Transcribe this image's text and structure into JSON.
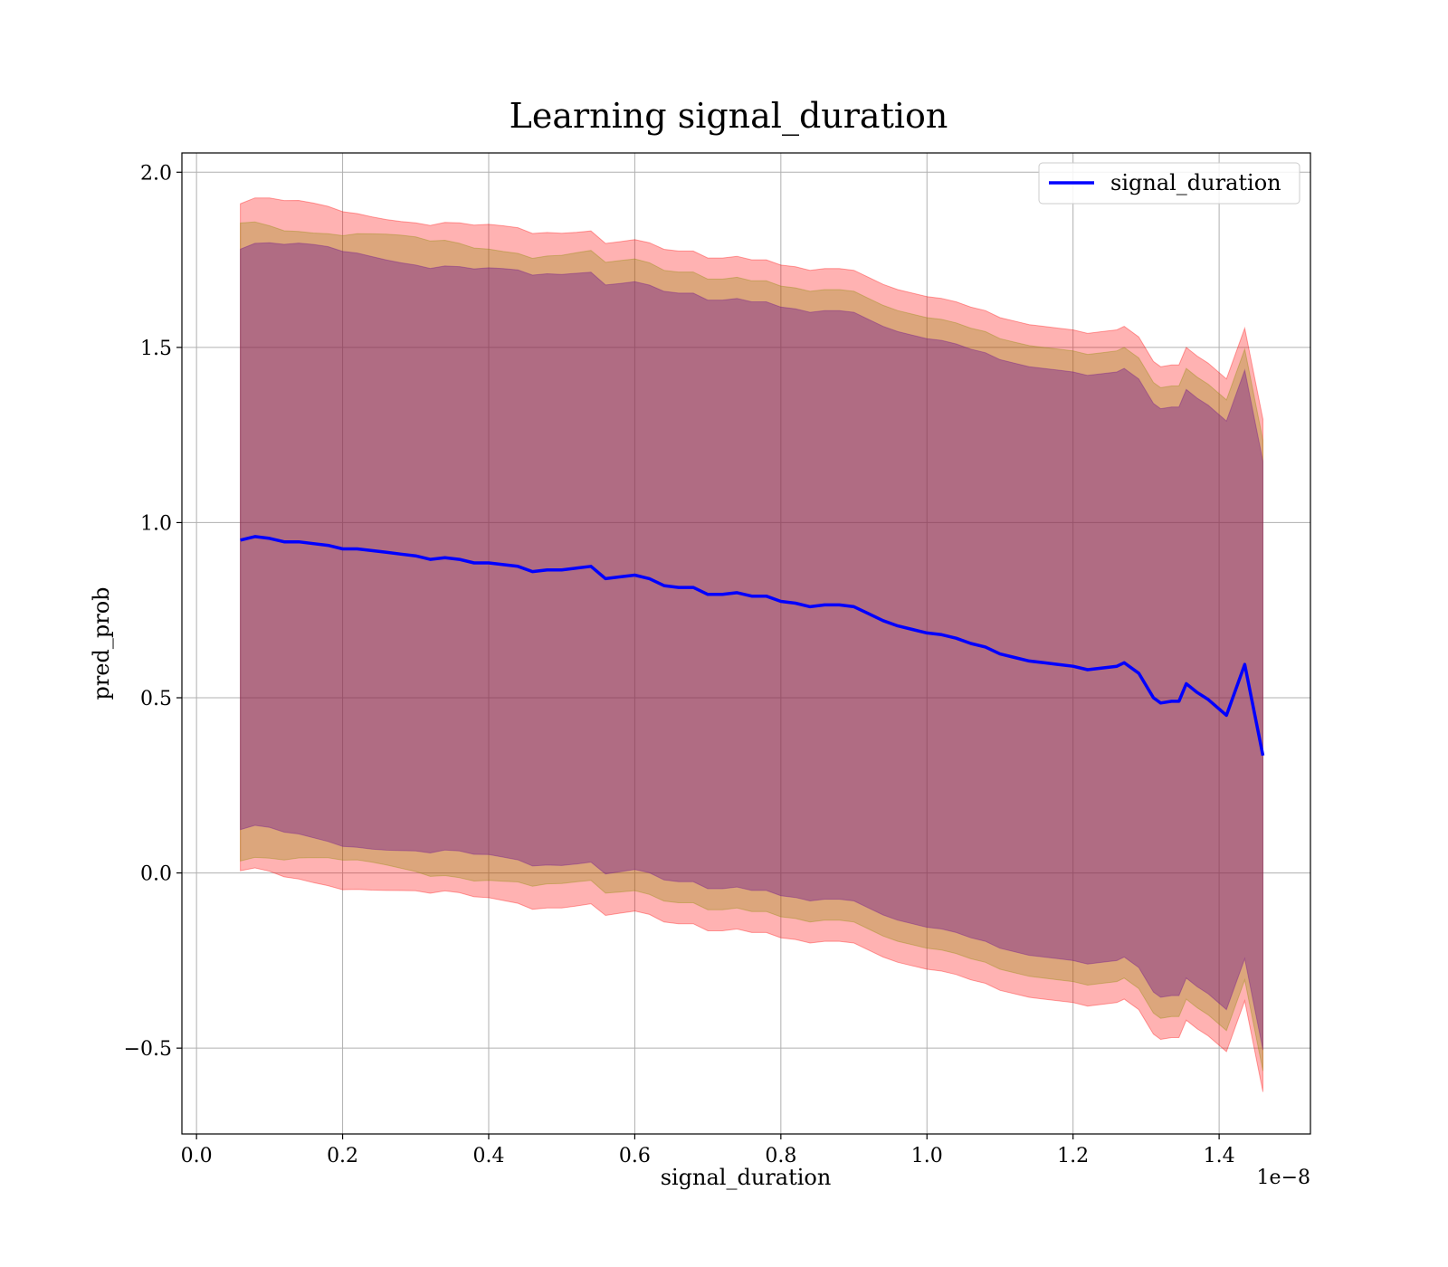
{
  "chart_data": {
    "type": "line",
    "title": "Learning signal_duration",
    "xlabel": "signal_duration",
    "ylabel": "pred_prob",
    "x_offset_label": "1e−8",
    "xlim": [
      -0.02,
      1.525
    ],
    "ylim": [
      -0.745,
      2.055
    ],
    "xticks": [
      0.0,
      0.2,
      0.4,
      0.6,
      0.8,
      1.0,
      1.2,
      1.4
    ],
    "xtick_labels": [
      "0.0",
      "0.2",
      "0.4",
      "0.6",
      "0.8",
      "1.0",
      "1.2",
      "1.4"
    ],
    "yticks": [
      -0.5,
      0.0,
      0.5,
      1.0,
      1.5,
      2.0
    ],
    "ytick_labels": [
      "−0.5",
      "0.0",
      "0.5",
      "1.0",
      "1.5",
      "2.0"
    ],
    "grid": true,
    "legend": {
      "position": "top-right",
      "entries": [
        "signal_duration"
      ]
    },
    "colors": {
      "line": "#0000ff",
      "outer_band": "#ff0000",
      "middle_band": "#8b8b00",
      "inner_band": "#6a0d8f",
      "grid": "#b0b0b0"
    },
    "series": [
      {
        "name": "signal_duration",
        "x": [
          0.06,
          0.08,
          0.1,
          0.12,
          0.14,
          0.16,
          0.18,
          0.2,
          0.22,
          0.24,
          0.26,
          0.28,
          0.3,
          0.32,
          0.34,
          0.36,
          0.38,
          0.4,
          0.42,
          0.44,
          0.46,
          0.48,
          0.5,
          0.52,
          0.54,
          0.56,
          0.58,
          0.6,
          0.62,
          0.64,
          0.66,
          0.68,
          0.7,
          0.72,
          0.74,
          0.76,
          0.78,
          0.8,
          0.82,
          0.84,
          0.86,
          0.88,
          0.9,
          0.92,
          0.94,
          0.96,
          0.98,
          1.0,
          1.02,
          1.04,
          1.06,
          1.08,
          1.1,
          1.12,
          1.14,
          1.16,
          1.18,
          1.2,
          1.22,
          1.24,
          1.26,
          1.27,
          1.29,
          1.31,
          1.32,
          1.335,
          1.345,
          1.355,
          1.37,
          1.385,
          1.41,
          1.435,
          1.46
        ],
        "values": [
          0.95,
          0.96,
          0.955,
          0.945,
          0.945,
          0.94,
          0.935,
          0.925,
          0.925,
          0.92,
          0.915,
          0.91,
          0.905,
          0.895,
          0.9,
          0.895,
          0.885,
          0.885,
          0.88,
          0.875,
          0.86,
          0.865,
          0.865,
          0.87,
          0.875,
          0.84,
          0.845,
          0.85,
          0.84,
          0.82,
          0.815,
          0.815,
          0.795,
          0.795,
          0.8,
          0.79,
          0.79,
          0.775,
          0.77,
          0.76,
          0.765,
          0.765,
          0.76,
          0.74,
          0.72,
          0.705,
          0.695,
          0.685,
          0.68,
          0.67,
          0.655,
          0.645,
          0.625,
          0.615,
          0.605,
          0.6,
          0.595,
          0.59,
          0.58,
          0.585,
          0.59,
          0.6,
          0.57,
          0.5,
          0.485,
          0.49,
          0.49,
          0.54,
          0.515,
          0.495,
          0.45,
          0.595,
          0.335
        ]
      }
    ],
    "bands": [
      {
        "name": "",
        "half_width": 0.96,
        "color": "#ff0000",
        "opacity": 0.3
      },
      {
        "name": "",
        "half_width": 0.9,
        "color": "#8b8b00",
        "opacity": 0.3
      },
      {
        "name": "",
        "half_width": 0.84,
        "color": "#6a0d8f",
        "opacity": 0.38
      }
    ]
  }
}
